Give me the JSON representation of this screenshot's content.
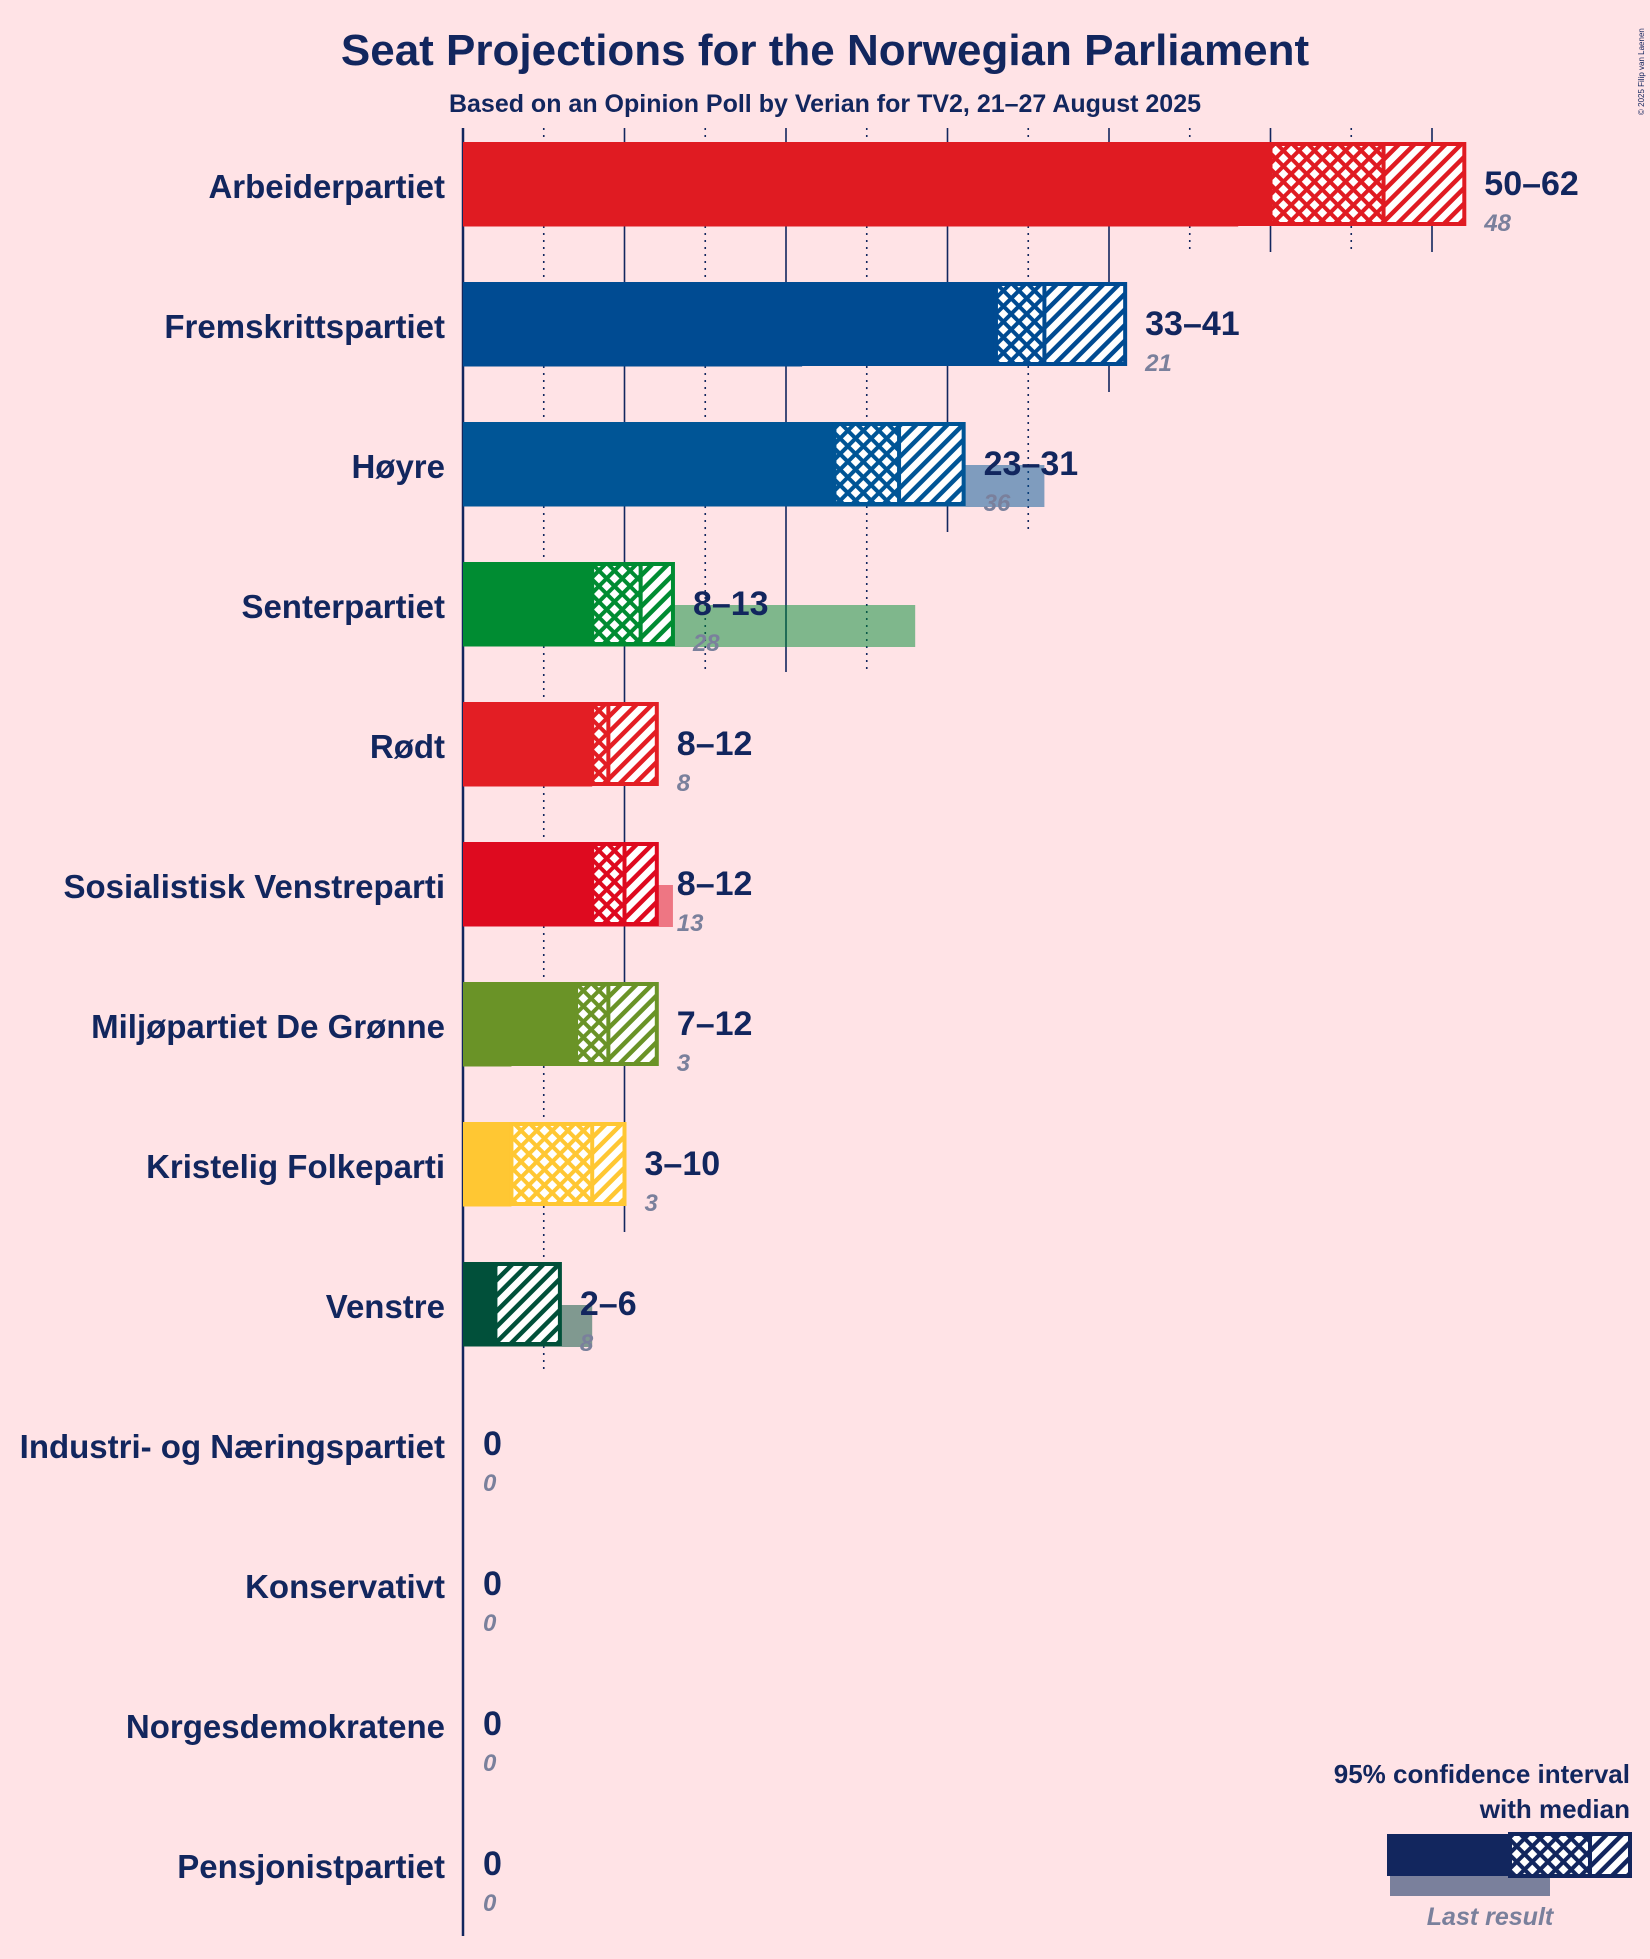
{
  "title": "Seat Projections for the Norwegian Parliament",
  "subtitle": "Based on an Opinion Poll by Verian for TV2, 21–27 August 2025",
  "copyright": "© 2025 Filip van Laenen",
  "legend": {
    "title_line1": "95% confidence interval",
    "title_line2": "with median",
    "last_result_label": "Last result",
    "color": "#12265E"
  },
  "chart_data": {
    "type": "bar",
    "orientation": "horizontal",
    "title": "Seat Projections for the Norwegian Parliament",
    "subtitle": "Based on an Opinion Poll by Verian for TV2, 21–27 August 2025",
    "x_gridlines": [
      5,
      10,
      15,
      20,
      25,
      30,
      35,
      40,
      45,
      50,
      55,
      60
    ],
    "major_gridlines": [
      10,
      20,
      30,
      40,
      50,
      60
    ],
    "series": [
      {
        "name": "95% confidence interval with median"
      },
      {
        "name": "Last result"
      }
    ],
    "parties": [
      {
        "name": "Arbeiderpartiet",
        "low": 50,
        "median": 57,
        "high": 62,
        "range_label": "50–62",
        "last": 48,
        "last_label": "48",
        "color": "#E01B22"
      },
      {
        "name": "Fremskrittspartiet",
        "low": 33,
        "median": 36,
        "high": 41,
        "range_label": "33–41",
        "last": 21,
        "last_label": "21",
        "color": "#004B92"
      },
      {
        "name": "Høyre",
        "low": 23,
        "median": 27,
        "high": 31,
        "range_label": "23–31",
        "last": 36,
        "last_label": "36",
        "color": "#005596"
      },
      {
        "name": "Senterpartiet",
        "low": 8,
        "median": 11,
        "high": 13,
        "range_label": "8–13",
        "last": 28,
        "last_label": "28",
        "color": "#008C32"
      },
      {
        "name": "Rødt",
        "low": 8,
        "median": 9,
        "high": 12,
        "range_label": "8–12",
        "last": 8,
        "last_label": "8",
        "color": "#E31E24"
      },
      {
        "name": "Sosialistisk Venstreparti",
        "low": 8,
        "median": 10,
        "high": 12,
        "range_label": "8–12",
        "last": 13,
        "last_label": "13",
        "color": "#DE0A1F"
      },
      {
        "name": "Miljøpartiet De Grønne",
        "low": 7,
        "median": 9,
        "high": 12,
        "range_label": "7–12",
        "last": 3,
        "last_label": "3",
        "color": "#6A9327"
      },
      {
        "name": "Kristelig Folkeparti",
        "low": 3,
        "median": 8,
        "high": 10,
        "range_label": "3–10",
        "last": 3,
        "last_label": "3",
        "color": "#FFC733"
      },
      {
        "name": "Venstre",
        "low": 2,
        "median": 2,
        "high": 6,
        "range_label": "2–6",
        "last": 8,
        "last_label": "8",
        "color": "#01503A"
      },
      {
        "name": "Industri- og Næringspartiet",
        "low": 0,
        "median": 0,
        "high": 0,
        "range_label": "0",
        "last": 0,
        "last_label": "0",
        "color": "#12265E"
      },
      {
        "name": "Konservativt",
        "low": 0,
        "median": 0,
        "high": 0,
        "range_label": "0",
        "last": 0,
        "last_label": "0",
        "color": "#12265E"
      },
      {
        "name": "Norgesdemokratene",
        "low": 0,
        "median": 0,
        "high": 0,
        "range_label": "0",
        "last": 0,
        "last_label": "0",
        "color": "#12265E"
      },
      {
        "name": "Pensjonistpartiet",
        "low": 0,
        "median": 0,
        "high": 0,
        "range_label": "0",
        "last": 0,
        "last_label": "0",
        "color": "#12265E"
      }
    ]
  }
}
